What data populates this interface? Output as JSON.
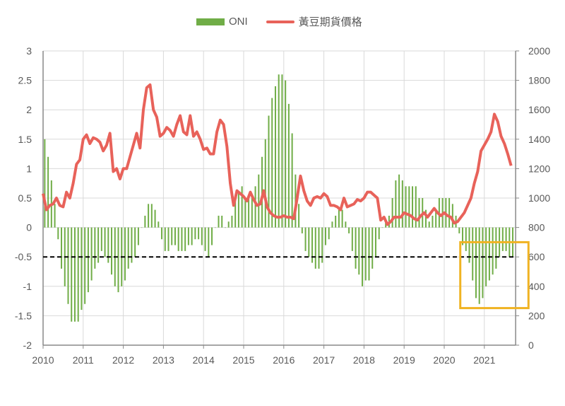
{
  "chart_data": {
    "type": "bar+line",
    "title": "",
    "legend": [
      "ONI",
      "黃豆期貨價格"
    ],
    "legend_position": "top",
    "x_ticks": [
      "2010",
      "2011",
      "2012",
      "2013",
      "2014",
      "2015",
      "2016",
      "2017",
      "2018",
      "2019",
      "2020",
      "2021"
    ],
    "y_left_ticks": [
      "3",
      "2.5",
      "2",
      "1.5",
      "1",
      "0.5",
      "0",
      "-0.5",
      "-1",
      "-1.5",
      "-2"
    ],
    "y_right_ticks": [
      "2000",
      "1800",
      "1600",
      "1400",
      "1200",
      "1000",
      "800",
      "600",
      "400",
      "200",
      "0"
    ],
    "y_left_range": [
      -2,
      3
    ],
    "y_right_range": [
      0,
      2000
    ],
    "x_range": [
      2010,
      2021.78
    ],
    "threshold_line": -0.5,
    "highlight_box": {
      "x": [
        2020.4,
        2022.1
      ],
      "y_left": [
        -0.25,
        -1.37
      ]
    },
    "colors": {
      "oni": "#70ad47",
      "price": "#e8625a",
      "threshold": "#000000",
      "highlight": "#f0b323",
      "grid": "#d9d9d9"
    },
    "series": [
      {
        "name": "ONI",
        "type": "bar",
        "start": 2010,
        "step_months": 1,
        "values": [
          1.5,
          1.2,
          0.8,
          0.4,
          -0.2,
          -0.7,
          -1.0,
          -1.3,
          -1.6,
          -1.6,
          -1.6,
          -1.4,
          -1.3,
          -1.1,
          -0.9,
          -0.7,
          -0.6,
          -0.4,
          -0.5,
          -0.6,
          -0.8,
          -1.0,
          -1.1,
          -1.0,
          -0.9,
          -0.7,
          -0.6,
          -0.5,
          -0.3,
          0.0,
          0.2,
          0.4,
          0.4,
          0.3,
          0.1,
          -0.2,
          -0.4,
          -0.4,
          -0.3,
          -0.3,
          -0.4,
          -0.4,
          -0.4,
          -0.3,
          -0.3,
          -0.2,
          -0.2,
          -0.3,
          -0.4,
          -0.5,
          -0.3,
          0.0,
          0.2,
          0.2,
          0.0,
          0.1,
          0.2,
          0.5,
          0.6,
          0.7,
          0.5,
          0.5,
          0.5,
          0.7,
          0.9,
          1.2,
          1.5,
          1.9,
          2.2,
          2.4,
          2.6,
          2.6,
          2.5,
          2.1,
          1.6,
          0.9,
          0.4,
          -0.1,
          -0.4,
          -0.5,
          -0.6,
          -0.7,
          -0.7,
          -0.6,
          -0.3,
          -0.2,
          0.1,
          0.2,
          0.3,
          0.3,
          0.1,
          -0.1,
          -0.4,
          -0.7,
          -0.8,
          -1.0,
          -0.9,
          -0.9,
          -0.7,
          -0.5,
          -0.2,
          0.0,
          0.1,
          0.2,
          0.5,
          0.8,
          0.9,
          0.8,
          0.7,
          0.7,
          0.7,
          0.7,
          0.5,
          0.5,
          0.3,
          0.1,
          0.2,
          0.3,
          0.5,
          0.5,
          0.5,
          0.5,
          0.4,
          0.2,
          -0.1,
          -0.3,
          -0.4,
          -0.6,
          -0.9,
          -1.2,
          -1.3,
          -1.2,
          -1.0,
          -0.9,
          -0.8,
          -0.7,
          -0.5,
          -0.4,
          -0.4,
          -0.5,
          -0.5
        ]
      },
      {
        "name": "黃豆期貨價格",
        "type": "line",
        "axis": "right",
        "start": 2010,
        "step_months": 1,
        "values": [
          1030,
          920,
          950,
          960,
          1000,
          950,
          940,
          1040,
          1000,
          1100,
          1230,
          1260,
          1400,
          1430,
          1370,
          1410,
          1400,
          1380,
          1320,
          1360,
          1440,
          1180,
          1200,
          1130,
          1200,
          1200,
          1280,
          1360,
          1440,
          1340,
          1600,
          1750,
          1770,
          1600,
          1550,
          1420,
          1440,
          1480,
          1460,
          1420,
          1500,
          1560,
          1450,
          1430,
          1560,
          1420,
          1450,
          1400,
          1330,
          1340,
          1300,
          1300,
          1450,
          1530,
          1500,
          1350,
          1100,
          950,
          1050,
          1030,
          1010,
          980,
          1040,
          990,
          950,
          960,
          1050,
          940,
          900,
          880,
          870,
          870,
          880,
          870,
          870,
          860,
          1000,
          1150,
          1050,
          980,
          950,
          1000,
          1010,
          1000,
          1030,
          1010,
          950,
          950,
          940,
          920,
          1000,
          940,
          950,
          960,
          990,
          980,
          1000,
          1040,
          1040,
          1020,
          1000,
          850,
          870,
          820,
          840,
          870,
          870,
          870,
          900,
          890,
          880,
          860,
          850,
          880,
          900,
          870,
          900,
          930,
          900,
          880,
          900,
          880,
          870,
          830,
          840,
          870,
          900,
          950,
          1000,
          1100,
          1180,
          1320,
          1360,
          1400,
          1450,
          1570,
          1520,
          1420,
          1370,
          1300,
          1220
        ]
      }
    ]
  }
}
